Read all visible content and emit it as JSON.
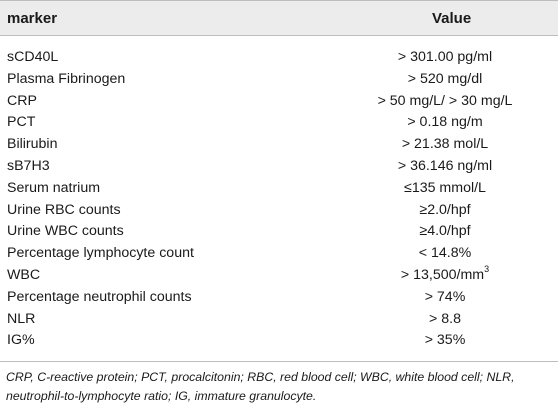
{
  "table": {
    "headers": {
      "marker": "marker",
      "value": "Value"
    },
    "rows": [
      {
        "marker": "sCD40L",
        "value": "> 301.00 pg/ml",
        "sup": ""
      },
      {
        "marker": "Plasma Fibrinogen",
        "value": "> 520 mg/dl",
        "sup": ""
      },
      {
        "marker": "CRP",
        "value": "> 50 mg/L/ > 30 mg/L",
        "sup": ""
      },
      {
        "marker": "PCT",
        "value": "> 0.18 ng/m",
        "sup": ""
      },
      {
        "marker": "Bilirubin",
        "value": "> 21.38 mol/L",
        "sup": ""
      },
      {
        "marker": "sB7H3",
        "value": "> 36.146 ng/ml",
        "sup": ""
      },
      {
        "marker": "Serum natrium",
        "value": "≤135 mmol/L",
        "sup": ""
      },
      {
        "marker": "Urine RBC counts",
        "value": "≥2.0/hpf",
        "sup": ""
      },
      {
        "marker": "Urine WBC counts",
        "value": "≥4.0/hpf",
        "sup": ""
      },
      {
        "marker": "Percentage lymphocyte count",
        "value": "< 14.8%",
        "sup": ""
      },
      {
        "marker": "WBC",
        "value": "> 13,500/mm",
        "sup": "3"
      },
      {
        "marker": "Percentage neutrophil counts",
        "value": "> 74%",
        "sup": ""
      },
      {
        "marker": "NLR",
        "value": "> 8.8",
        "sup": ""
      },
      {
        "marker": "IG%",
        "value": "> 35%",
        "sup": ""
      }
    ]
  },
  "footnote": "CRP, C-reactive protein; PCT, procalcitonin; RBC, red blood cell; WBC, white blood cell; NLR, neutrophil-to-lymphocyte ratio; IG, immature granulocyte."
}
